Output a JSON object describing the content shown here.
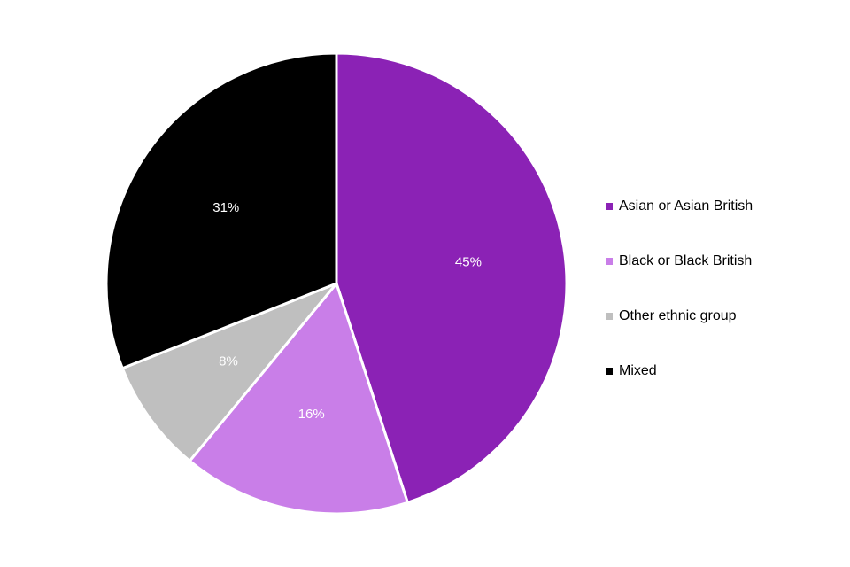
{
  "chart_data": {
    "type": "pie",
    "title": "",
    "start_angle_deg": 0,
    "direction": "clockwise",
    "legend_position": "right",
    "slices": [
      {
        "name": "Asian or Asian British",
        "value": 45,
        "label": "45%",
        "color": "#8b22b5"
      },
      {
        "name": "Black or Black British",
        "value": 16,
        "label": "16%",
        "color": "#c97ee8"
      },
      {
        "name": "Other ethnic group",
        "value": 8,
        "label": "8%",
        "color": "#bfbfbf"
      },
      {
        "name": "Mixed",
        "value": 31,
        "label": "31%",
        "color": "#000000"
      }
    ]
  },
  "legend": {
    "items": [
      {
        "label": "Asian or Asian British",
        "color": "#8b22b5"
      },
      {
        "label": "Black or Black British",
        "color": "#c97ee8"
      },
      {
        "label": "Other ethnic group",
        "color": "#bfbfbf"
      },
      {
        "label": "Mixed",
        "color": "#000000"
      }
    ]
  }
}
